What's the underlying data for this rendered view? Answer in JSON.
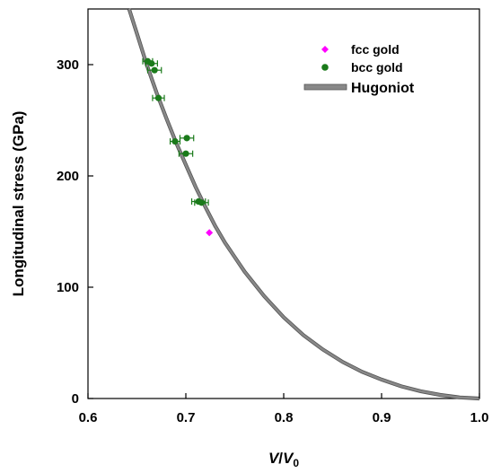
{
  "chart_data": {
    "type": "scatter",
    "xlabel_main": "V",
    "xlabel_sep": "/",
    "xlabel_denom": "V",
    "xlabel_sub": "0",
    "ylabel": "Longitudinal stress (GPa)",
    "xlim": [
      0.6,
      1.0
    ],
    "ylim": [
      0,
      350
    ],
    "x_ticks": [
      "0.6",
      "0.7",
      "0.8",
      "0.9",
      "1.0"
    ],
    "x_tick_values": [
      0.6,
      0.7,
      0.8,
      0.9,
      1.0
    ],
    "y_ticks": [
      "0",
      "100",
      "200",
      "300"
    ],
    "y_tick_values": [
      0,
      100,
      200,
      300
    ],
    "grid": false,
    "legend_position": "top-right",
    "legend": [
      {
        "label": "fcc gold",
        "marker": "diamond",
        "color": "#ff00ff"
      },
      {
        "label": "bcc gold",
        "marker": "circle",
        "color": "#1a7a1a"
      },
      {
        "label": "Hugoniot",
        "marker": "band",
        "color": "#888888"
      }
    ],
    "series": [
      {
        "name": "fcc gold",
        "color": "#ff00ff",
        "points": [
          {
            "x": 0.724,
            "y": 149
          }
        ]
      },
      {
        "name": "bcc gold",
        "color": "#1a7a1a",
        "points": [
          {
            "x": 0.661,
            "y": 303,
            "xerr": 0.005
          },
          {
            "x": 0.665,
            "y": 301,
            "xerr": 0.006
          },
          {
            "x": 0.668,
            "y": 295,
            "xerr": 0.007
          },
          {
            "x": 0.672,
            "y": 270,
            "xerr": 0.006
          },
          {
            "x": 0.689,
            "y": 231,
            "xerr": 0.005
          },
          {
            "x": 0.701,
            "y": 234,
            "xerr": 0.007
          },
          {
            "x": 0.7,
            "y": 220,
            "xerr": 0.007
          },
          {
            "x": 0.713,
            "y": 177,
            "xerr": 0.007
          },
          {
            "x": 0.716,
            "y": 176,
            "xerr": 0.007
          }
        ]
      },
      {
        "name": "Hugoniot",
        "color": "#888888",
        "curve": [
          {
            "x": 0.642,
            "y": 350
          },
          {
            "x": 0.65,
            "y": 328
          },
          {
            "x": 0.66,
            "y": 300
          },
          {
            "x": 0.67,
            "y": 275
          },
          {
            "x": 0.68,
            "y": 252
          },
          {
            "x": 0.69,
            "y": 230
          },
          {
            "x": 0.7,
            "y": 210
          },
          {
            "x": 0.71,
            "y": 190
          },
          {
            "x": 0.72,
            "y": 172
          },
          {
            "x": 0.73,
            "y": 155
          },
          {
            "x": 0.74,
            "y": 140
          },
          {
            "x": 0.75,
            "y": 127
          },
          {
            "x": 0.76,
            "y": 114
          },
          {
            "x": 0.78,
            "y": 92
          },
          {
            "x": 0.8,
            "y": 73
          },
          {
            "x": 0.82,
            "y": 57
          },
          {
            "x": 0.84,
            "y": 44
          },
          {
            "x": 0.86,
            "y": 33
          },
          {
            "x": 0.88,
            "y": 24
          },
          {
            "x": 0.9,
            "y": 17
          },
          {
            "x": 0.92,
            "y": 11
          },
          {
            "x": 0.94,
            "y": 6.5
          },
          {
            "x": 0.96,
            "y": 3.2
          },
          {
            "x": 0.98,
            "y": 1.0
          },
          {
            "x": 1.0,
            "y": 0
          }
        ]
      }
    ]
  }
}
